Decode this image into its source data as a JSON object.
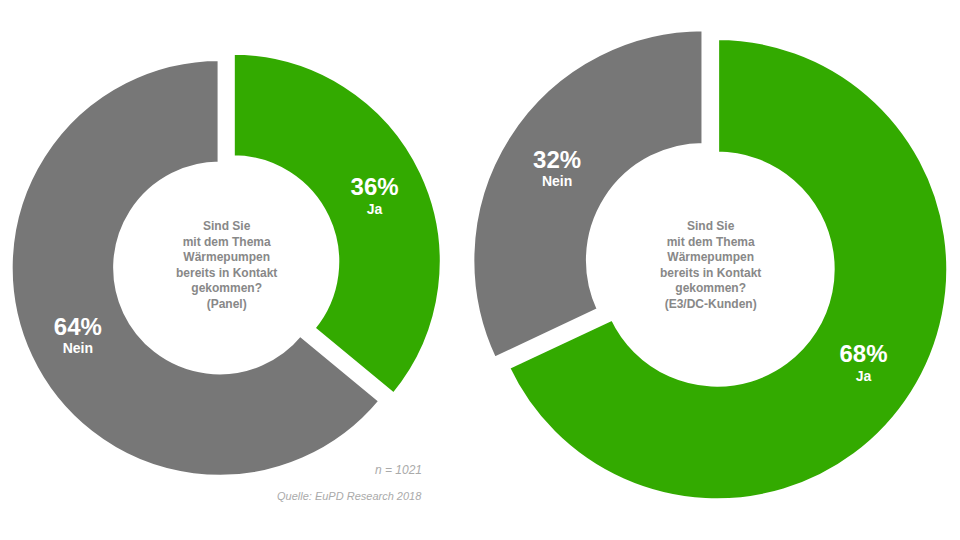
{
  "chart_data": [
    {
      "type": "pie",
      "title": "Sind Sie\nmit dem Thema\nWärmepumpen\nbereits in Kontakt\ngekommen?\n(Panel)",
      "categories": [
        "Ja",
        "Nein"
      ],
      "values": [
        36,
        64
      ],
      "value_labels": [
        "36%",
        "64%"
      ],
      "colors": [
        "#33aa00",
        "#777777"
      ],
      "data_labels": true,
      "annotations": [
        "n = 1021",
        "Quelle: EuPD Research 2018"
      ]
    },
    {
      "type": "pie",
      "title": "Sind Sie\nmit dem Thema\nWärmepumpen\nbereits in Kontakt\ngekommen?\n(E3/DC-Kunden)",
      "categories": [
        "Ja",
        "Nein"
      ],
      "values": [
        68,
        32
      ],
      "value_labels": [
        "68%",
        "32%"
      ],
      "colors": [
        "#33aa00",
        "#777777"
      ],
      "data_labels": true
    }
  ]
}
